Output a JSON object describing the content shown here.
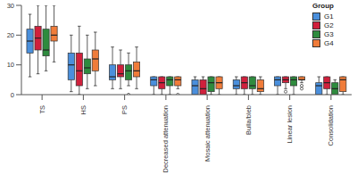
{
  "chart_data": {
    "type": "boxplot",
    "categories": [
      "TS",
      "HS",
      "PS",
      "Decreased attenuation",
      "Mosaic attenuation",
      "Bulla/bleb",
      "Linear lesion",
      "Consolidation"
    ],
    "ylim": [
      0,
      30
    ],
    "yticks": [
      0,
      10,
      20,
      30
    ],
    "grid": false,
    "legend": "top-right",
    "legend_title": "Group",
    "series": [
      {
        "name": "G1",
        "color": "#4a8fdc",
        "min": [
          6,
          1,
          2,
          0,
          0,
          0,
          0,
          0
        ],
        "q1": [
          14,
          5,
          5,
          3,
          0,
          2,
          3,
          0
        ],
        "median": [
          18,
          10,
          6,
          5,
          3,
          3,
          5,
          3
        ],
        "q3": [
          22,
          14,
          10,
          6,
          5,
          5,
          6,
          4
        ],
        "max": [
          27,
          20,
          16,
          6,
          6,
          6,
          6,
          6
        ],
        "outliers": [
          [],
          [],
          [],
          [],
          [],
          [],
          [],
          []
        ]
      },
      {
        "name": "G2",
        "color": "#d0203c",
        "min": [
          7,
          0,
          2,
          0,
          0,
          0,
          2,
          0
        ],
        "q1": [
          15,
          3,
          6,
          2,
          0,
          2,
          4,
          2
        ],
        "median": [
          19,
          8,
          7,
          4,
          2,
          4,
          5,
          4
        ],
        "q3": [
          23,
          14,
          10,
          6,
          5,
          6,
          6,
          6
        ],
        "max": [
          30,
          23,
          15,
          6,
          6,
          6,
          6,
          6
        ],
        "outliers": [
          [],
          [],
          [],
          [],
          [],
          [],
          [
            1
          ],
          []
        ]
      },
      {
        "name": "G3",
        "color": "#2e8b3e",
        "min": [
          8,
          2,
          3,
          0,
          0,
          0,
          0,
          0
        ],
        "q1": [
          13,
          7,
          5,
          3,
          1,
          2,
          3,
          0
        ],
        "median": [
          15,
          9,
          8,
          5,
          4,
          3,
          5,
          2
        ],
        "q3": [
          22,
          12,
          10,
          6,
          6,
          6,
          6,
          4
        ],
        "max": [
          30,
          20,
          14,
          6,
          6,
          6,
          6,
          5
        ],
        "outliers": [
          [],
          [],
          [
            0
          ],
          [],
          [],
          [],
          [],
          []
        ]
      },
      {
        "name": "G4",
        "color": "#f07c3a",
        "min": [
          11,
          3,
          2,
          2,
          0,
          0,
          4,
          0
        ],
        "q1": [
          18,
          8,
          6,
          3,
          2,
          1,
          5,
          1
        ],
        "median": [
          20,
          12,
          8,
          5,
          4,
          2,
          5,
          5
        ],
        "q3": [
          23,
          15,
          11,
          6,
          6,
          5,
          6,
          6
        ],
        "max": [
          30,
          21,
          16,
          6,
          6,
          6,
          6,
          6
        ],
        "outliers": [
          [],
          [],
          [],
          [
            0
          ],
          [],
          [],
          [
            2,
            3
          ],
          []
        ]
      }
    ]
  }
}
